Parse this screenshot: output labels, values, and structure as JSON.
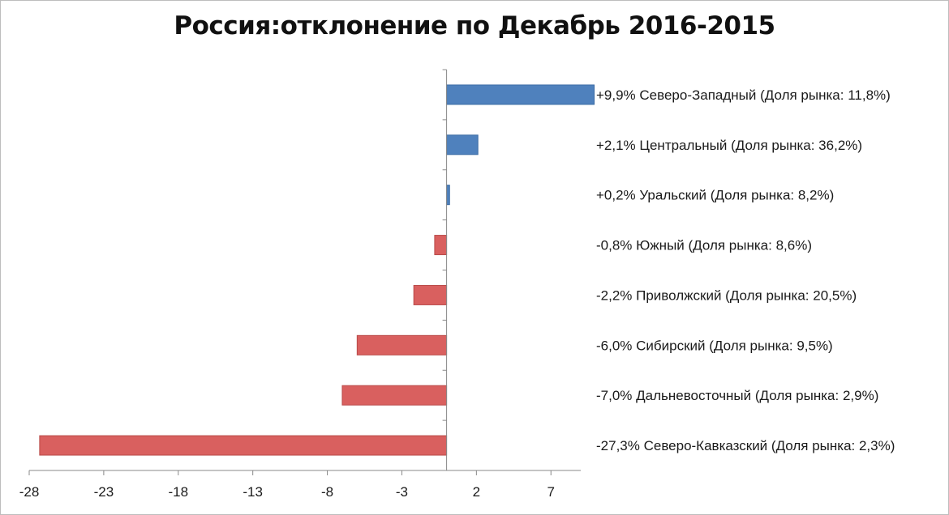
{
  "chart_data": {
    "type": "bar",
    "orientation": "horizontal",
    "title": "Россия:отклонение по Декабрь 2016-2015",
    "categories": [
      "+9,9%  Северо-Западный (Доля рынка: 11,8%)",
      "+2,1%  Центральный (Доля рынка: 36,2%)",
      "+0,2%  Уральский (Доля рынка: 8,2%)",
      "-0,8%  Южный (Доля рынка: 8,6%)",
      "-2,2%  Приволжский (Доля рынка: 20,5%)",
      "-6,0%  Сибирский (Доля рынка: 9,5%)",
      "-7,0%  Дальневосточный (Доля рынка: 2,9%)",
      "-27,3%  Северо-Кавказский (Доля рынка: 2,3%)"
    ],
    "values": [
      9.9,
      2.1,
      0.2,
      -0.8,
      -2.2,
      -6.0,
      -7.0,
      -27.3
    ],
    "xlim": [
      -28,
      9
    ],
    "xticks": [
      -28,
      -23,
      -18,
      -13,
      -8,
      -3,
      2,
      7
    ],
    "xtick_labels": [
      "-28",
      "-23",
      "-18",
      "-13",
      "-8",
      "-3",
      "2",
      "7"
    ],
    "colors": {
      "positive": "#4f81bd",
      "negative": "#d9605f",
      "positive_stroke": "#3a6aa3",
      "negative_stroke": "#b94a49"
    },
    "xlabel": "",
    "ylabel": "",
    "grid": false,
    "legend": "none"
  }
}
